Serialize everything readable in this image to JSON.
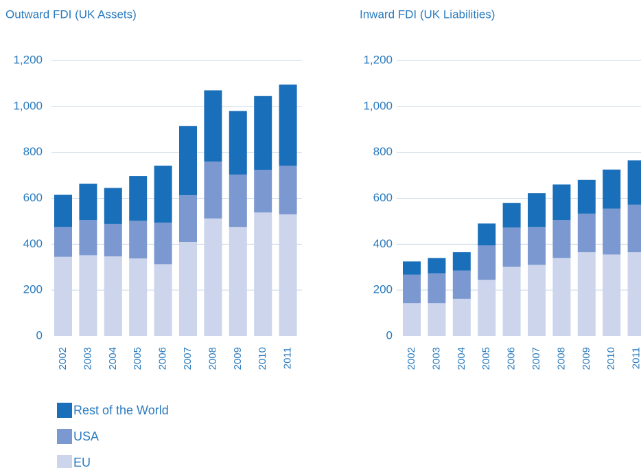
{
  "chart_data": [
    {
      "type": "stacked_bar",
      "title": "Outward FDI (UK Assets)",
      "categories": [
        "2002",
        "2003",
        "2004",
        "2005",
        "2006",
        "2007",
        "2008",
        "2009",
        "2010",
        "2011"
      ],
      "series": [
        {
          "name": "EU",
          "color": "#ccd5ec",
          "values": [
            345,
            352,
            347,
            338,
            313,
            410,
            512,
            475,
            538,
            530
          ]
        },
        {
          "name": "USA",
          "color": "#7b98d0",
          "values": [
            130,
            153,
            141,
            164,
            181,
            203,
            248,
            228,
            186,
            212
          ]
        },
        {
          "name": "Rest of the World",
          "color": "#1a6fba",
          "values": [
            140,
            158,
            157,
            195,
            248,
            302,
            310,
            277,
            321,
            353
          ]
        }
      ],
      "ylim": [
        0,
        1200
      ],
      "yticks": [
        0,
        200,
        400,
        600,
        800,
        {
          "value": 1000,
          "label": "1,000"
        },
        {
          "value": 1200,
          "label": "1,200"
        }
      ],
      "grid": true,
      "legend": "bottom-left"
    },
    {
      "type": "stacked_bar",
      "title": "Inward FDI (UK Liabilities)",
      "categories": [
        "2002",
        "2003",
        "2004",
        "2005",
        "2006",
        "2007",
        "2008",
        "2009",
        "2010",
        "2011"
      ],
      "series": [
        {
          "color": "#ccd5ec",
          "values": [
            143,
            143,
            162,
            245,
            302,
            310,
            340,
            365,
            355,
            365
          ]
        },
        {
          "color": "#7b98d0",
          "values": [
            124,
            130,
            123,
            150,
            171,
            165,
            165,
            168,
            200,
            207
          ]
        },
        {
          "color": "#1a6fba",
          "values": [
            58,
            67,
            80,
            95,
            107,
            147,
            155,
            147,
            170,
            193
          ]
        }
      ],
      "ylim": [
        0,
        1200
      ],
      "yticks": [
        0,
        200,
        400,
        600,
        800,
        {
          "value": 1000,
          "label": "1,000"
        },
        {
          "value": 1200,
          "label": "1,200"
        }
      ],
      "grid": true
    }
  ]
}
